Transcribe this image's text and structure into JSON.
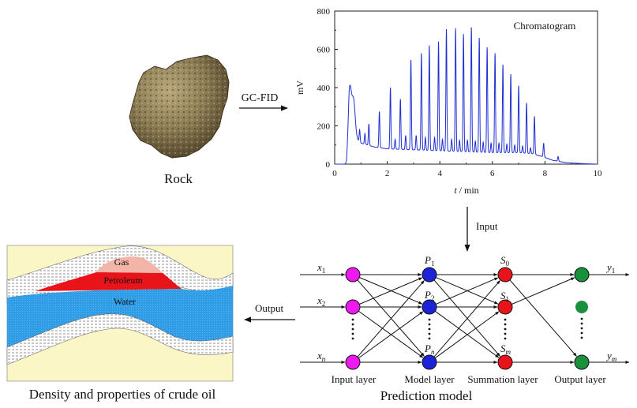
{
  "rock": {
    "label": "Rock"
  },
  "gcfid": {
    "label": "GC-FID"
  },
  "chromatogram": {
    "title": "Chromatogram",
    "ylabel": "mV",
    "xlabel_var": "t",
    "xlabel_unit": " / min",
    "y_ticks": [
      "0",
      "200",
      "400",
      "600",
      "800"
    ],
    "x_ticks": [
      "0",
      "2",
      "4",
      "6",
      "8",
      "10"
    ],
    "line_color": "#1f2fd1"
  },
  "chart_data": {
    "type": "line",
    "title": "Chromatogram",
    "xlabel": "t / min",
    "ylabel": "mV",
    "xlim": [
      0,
      10
    ],
    "ylim": [
      0,
      800
    ],
    "baseline": [
      [
        0,
        0
      ],
      [
        0.45,
        0
      ],
      [
        0.5,
        80
      ],
      [
        0.55,
        180
      ],
      [
        0.7,
        150
      ],
      [
        1.0,
        110
      ],
      [
        1.5,
        90
      ],
      [
        2.0,
        80
      ],
      [
        3.0,
        75
      ],
      [
        4.0,
        70
      ],
      [
        5.0,
        65
      ],
      [
        6.0,
        60
      ],
      [
        7.0,
        60
      ],
      [
        7.5,
        55
      ],
      [
        7.9,
        40
      ],
      [
        8.3,
        20
      ],
      [
        8.8,
        8
      ],
      [
        9.5,
        2
      ],
      [
        10,
        0
      ]
    ],
    "peaks": [
      {
        "t": 0.58,
        "mV": 400
      },
      {
        "t": 0.72,
        "mV": 330
      },
      {
        "t": 0.95,
        "mV": 180
      },
      {
        "t": 1.3,
        "mV": 210
      },
      {
        "t": 1.7,
        "mV": 275
      },
      {
        "t": 2.12,
        "mV": 400
      },
      {
        "t": 2.5,
        "mV": 340
      },
      {
        "t": 2.9,
        "mV": 545
      },
      {
        "t": 3.3,
        "mV": 580
      },
      {
        "t": 3.6,
        "mV": 620
      },
      {
        "t": 3.95,
        "mV": 640
      },
      {
        "t": 4.25,
        "mV": 705
      },
      {
        "t": 4.6,
        "mV": 710
      },
      {
        "t": 4.9,
        "mV": 680
      },
      {
        "t": 5.2,
        "mV": 715
      },
      {
        "t": 5.5,
        "mV": 660
      },
      {
        "t": 5.8,
        "mV": 610
      },
      {
        "t": 6.1,
        "mV": 580
      },
      {
        "t": 6.4,
        "mV": 520
      },
      {
        "t": 6.7,
        "mV": 470
      },
      {
        "t": 7.0,
        "mV": 410
      },
      {
        "t": 7.3,
        "mV": 320
      },
      {
        "t": 7.6,
        "mV": 250
      },
      {
        "t": 7.95,
        "mV": 110
      },
      {
        "t": 8.5,
        "mV": 40
      }
    ],
    "minor_peaks": [
      {
        "t": 1.15,
        "mV": 160
      },
      {
        "t": 2.3,
        "mV": 130
      },
      {
        "t": 2.7,
        "mV": 150
      },
      {
        "t": 3.1,
        "mV": 150
      },
      {
        "t": 3.45,
        "mV": 140
      },
      {
        "t": 3.8,
        "mV": 140
      },
      {
        "t": 4.1,
        "mV": 130
      },
      {
        "t": 4.45,
        "mV": 130
      },
      {
        "t": 4.75,
        "mV": 125
      },
      {
        "t": 5.05,
        "mV": 125
      },
      {
        "t": 5.35,
        "mV": 120
      },
      {
        "t": 5.65,
        "mV": 115
      },
      {
        "t": 5.95,
        "mV": 110
      },
      {
        "t": 6.25,
        "mV": 110
      },
      {
        "t": 6.55,
        "mV": 105
      },
      {
        "t": 6.85,
        "mV": 100
      },
      {
        "t": 7.15,
        "mV": 95
      },
      {
        "t": 7.45,
        "mV": 85
      }
    ]
  },
  "arrows": {
    "input": "Input",
    "output": "Output"
  },
  "reservoir": {
    "gas": "Gas",
    "petroleum": "Petroleum",
    "water": "Water",
    "caption": "Density and properties of crude oil",
    "colors": {
      "background": "#fbf6c6",
      "gas": "#f2b5a8",
      "petroleum": "#e8141a",
      "water": "#2e9ce6",
      "rock_band": "#d8d8d8"
    }
  },
  "network": {
    "inputs": [
      "x",
      "x",
      "x"
    ],
    "input_subs": [
      "1",
      "2",
      "n"
    ],
    "model": [
      "P",
      "P",
      "P"
    ],
    "model_subs": [
      "1",
      "2",
      "n"
    ],
    "summation": [
      "S",
      "S",
      "S"
    ],
    "summation_subs": [
      "0",
      "1",
      "m"
    ],
    "outputs": [
      "y",
      "y"
    ],
    "output_subs": [
      "1",
      "m"
    ],
    "layer_labels": [
      "Input layer",
      "Model layer",
      "Summation layer",
      "Output layer"
    ],
    "caption": "Prediction model",
    "colors": {
      "input": "#ee19ee",
      "model": "#1b22d8",
      "summation": "#e8141a",
      "output": "#1a8f3c"
    }
  }
}
